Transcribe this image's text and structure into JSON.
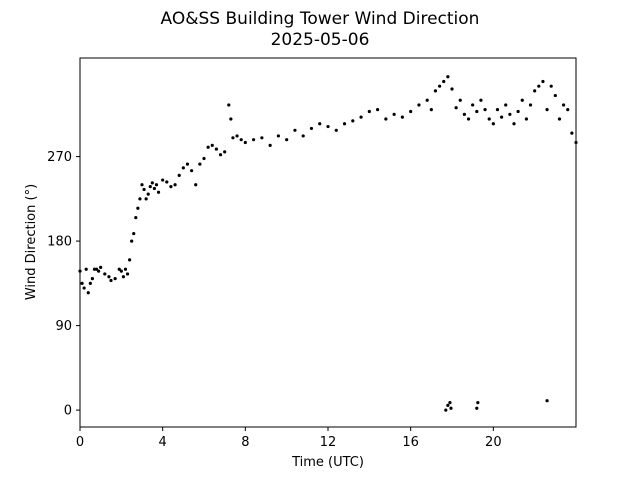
{
  "chart_data": {
    "type": "scatter",
    "title": "AO&SS Building Tower Wind Direction",
    "subtitle": "2025-05-06",
    "xlabel": "Time (UTC)",
    "ylabel": "Wind Direction (°)",
    "xlim": [
      0,
      24
    ],
    "ylim": [
      -18,
      375
    ],
    "xticks": [
      0,
      4,
      8,
      12,
      16,
      20
    ],
    "yticks": [
      0,
      90,
      180,
      270
    ],
    "grid": false,
    "legend": "none",
    "marker_color": "#000000",
    "series": [
      {
        "x": [
          0.0,
          0.1,
          0.2,
          0.3,
          0.4,
          0.5,
          0.6,
          0.7,
          0.8,
          0.9,
          1.0,
          1.2,
          1.4,
          1.5,
          1.7,
          1.9,
          2.0,
          2.1,
          2.2,
          2.3,
          2.4,
          2.5,
          2.6,
          2.7,
          2.8,
          2.9,
          3.0,
          3.1,
          3.2,
          3.3,
          3.4,
          3.5,
          3.6,
          3.7,
          3.8,
          4.0,
          4.2,
          4.4,
          4.6,
          4.8,
          5.0,
          5.2,
          5.4,
          5.6,
          5.8,
          6.0,
          6.2,
          6.4,
          6.6,
          6.8,
          7.0,
          7.2,
          7.3,
          7.4,
          7.6,
          7.8,
          8.0,
          8.4,
          8.8,
          9.2,
          9.6,
          10.0,
          10.4,
          10.8,
          11.2,
          11.6,
          12.0,
          12.4,
          12.8,
          13.2,
          13.6,
          14.0,
          14.4,
          14.8,
          15.2,
          15.6,
          16.0,
          16.4,
          16.8,
          17.0,
          17.2,
          17.4,
          17.6,
          17.8,
          18.0,
          18.2,
          18.4,
          18.6,
          18.8,
          19.0,
          19.2,
          19.4,
          19.6,
          19.8,
          20.0,
          20.2,
          20.4,
          20.6,
          20.8,
          21.0,
          21.2,
          21.4,
          21.6,
          21.8,
          22.0,
          22.2,
          22.4,
          22.6,
          22.8,
          23.0,
          23.2,
          23.4,
          23.6,
          23.8,
          24.0,
          17.7,
          17.8,
          17.9,
          17.95,
          19.2,
          19.25,
          22.6
        ],
        "y": [
          148,
          135,
          130,
          150,
          125,
          135,
          140,
          150,
          150,
          148,
          152,
          145,
          142,
          138,
          140,
          150,
          148,
          142,
          150,
          145,
          160,
          180,
          188,
          205,
          215,
          225,
          240,
          235,
          225,
          230,
          238,
          242,
          236,
          240,
          232,
          245,
          243,
          238,
          240,
          250,
          258,
          262,
          255,
          240,
          262,
          268,
          280,
          282,
          278,
          272,
          275,
          325,
          310,
          290,
          292,
          288,
          285,
          288,
          290,
          282,
          292,
          288,
          298,
          292,
          300,
          305,
          302,
          298,
          305,
          308,
          312,
          318,
          320,
          310,
          315,
          312,
          318,
          325,
          330,
          320,
          340,
          345,
          350,
          355,
          342,
          322,
          330,
          315,
          310,
          325,
          318,
          330,
          320,
          310,
          305,
          320,
          312,
          325,
          315,
          305,
          318,
          330,
          310,
          325,
          340,
          345,
          350,
          320,
          345,
          335,
          310,
          325,
          320,
          295,
          285,
          0,
          5,
          8,
          2,
          2,
          8,
          10
        ]
      }
    ]
  }
}
